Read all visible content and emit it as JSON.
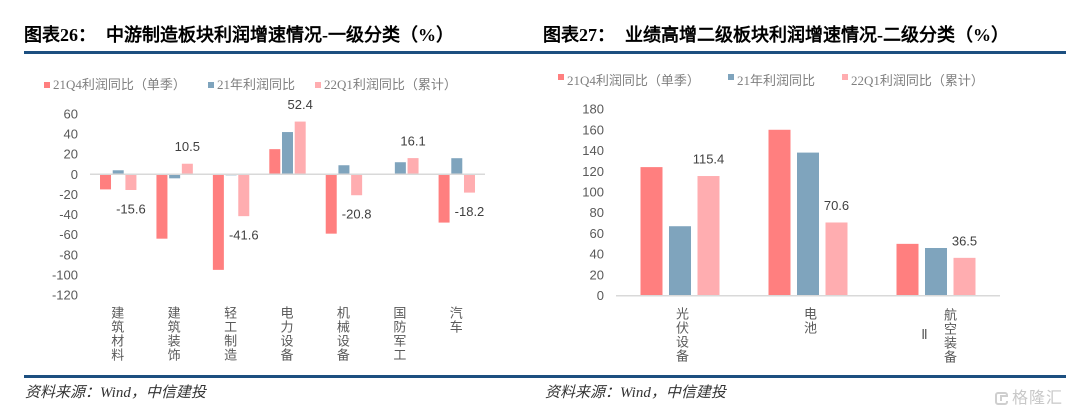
{
  "figures": [
    {
      "label": "图表26：",
      "source": "资料来源：Wind，中信建投"
    },
    {
      "label": "图表27：",
      "source": "资料来源：Wind，中信建投"
    }
  ],
  "watermark": {
    "icon": "gelonghui-logo-icon",
    "text": "格隆汇"
  },
  "chart_data": [
    {
      "type": "bar",
      "title": "中游制造板块利润增速情况-一级分类（%）",
      "categories": [
        "建筑材料",
        "建筑装饰",
        "轻工制造",
        "电力设备",
        "机械设备",
        "国防军工",
        "汽车"
      ],
      "series": [
        {
          "name": "21Q4利润同比（单季）",
          "color": "#FF7F7F",
          "values": [
            -15,
            -64,
            -95,
            25,
            -59,
            0.5,
            -48
          ]
        },
        {
          "name": "21年利润同比",
          "color": "#7FA4BD",
          "values": [
            4,
            -4,
            -1,
            42,
            9,
            12,
            16
          ]
        },
        {
          "name": "22Q1利润同比（累计）",
          "color": "#FFADB0",
          "values": [
            -15.6,
            10.5,
            -41.6,
            52.4,
            -20.8,
            16.1,
            -18.2
          ],
          "data_labels": true
        }
      ],
      "xlabel": "",
      "ylabel": "",
      "ylim": [
        -120,
        60
      ],
      "yticks": [
        60,
        40,
        20,
        0,
        -20,
        -40,
        -60,
        -80,
        -100,
        -120
      ],
      "grid": false,
      "legend": "top"
    },
    {
      "type": "bar",
      "title": "业绩高增二级板块利润增速情况-二级分类（%）",
      "categories": [
        "光伏设备",
        "电池",
        "航空装备Ⅱ"
      ],
      "series": [
        {
          "name": "21Q4利润同比（单季）",
          "color": "#FF7F7F",
          "values": [
            124,
            160,
            50
          ]
        },
        {
          "name": "21年利润同比",
          "color": "#7FA4BD",
          "values": [
            67,
            138,
            46
          ]
        },
        {
          "name": "22Q1利润同比（累计）",
          "color": "#FFADB0",
          "values": [
            115.4,
            70.6,
            36.5
          ],
          "data_labels": true
        }
      ],
      "xlabel": "",
      "ylabel": "",
      "ylim": [
        0,
        180
      ],
      "yticks": [
        180,
        160,
        140,
        120,
        100,
        80,
        60,
        40,
        20,
        0
      ],
      "grid": false,
      "legend": "top"
    }
  ]
}
